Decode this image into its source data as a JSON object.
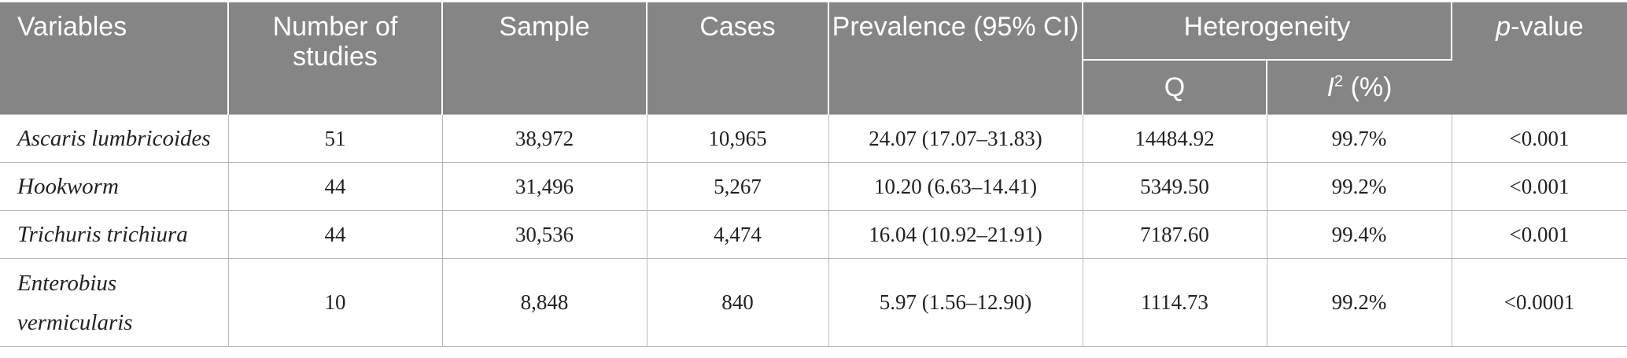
{
  "header": {
    "variables": "Variables",
    "number_of_studies": "Number of studies",
    "sample": "Sample",
    "cases": "Cases",
    "prevalence": "Prevalence (95% CI)",
    "heterogeneity": "Heterogeneity",
    "q": "Q",
    "i2_letter": "I",
    "i2_sup": "2",
    "i2_unit": " (%)",
    "p_italic": "p",
    "p_rest": "-value"
  },
  "rows": [
    {
      "variable": "Ascaris lumbricoides",
      "studies": "51",
      "sample": "38,972",
      "cases": "10,965",
      "prevalence": "24.07 (17.07–31.83)",
      "q": "14484.92",
      "i2": "99.7%",
      "p": "<0.001"
    },
    {
      "variable": "Hookworm",
      "studies": "44",
      "sample": "31,496",
      "cases": "5,267",
      "prevalence": "10.20 (6.63–14.41)",
      "q": "5349.50",
      "i2": "99.2%",
      "p": "<0.001"
    },
    {
      "variable": "Trichuris trichiura",
      "studies": "44",
      "sample": "30,536",
      "cases": "4,474",
      "prevalence": "16.04 (10.92–21.91)",
      "q": "7187.60",
      "i2": "99.4%",
      "p": "<0.001"
    },
    {
      "variable": "Enterobius vermicularis",
      "studies": "10",
      "sample": "8,848",
      "cases": "840",
      "prevalence": "5.97 (1.56–12.90)",
      "q": "1114.73",
      "i2": "99.2%",
      "p": "<0.0001"
    }
  ]
}
